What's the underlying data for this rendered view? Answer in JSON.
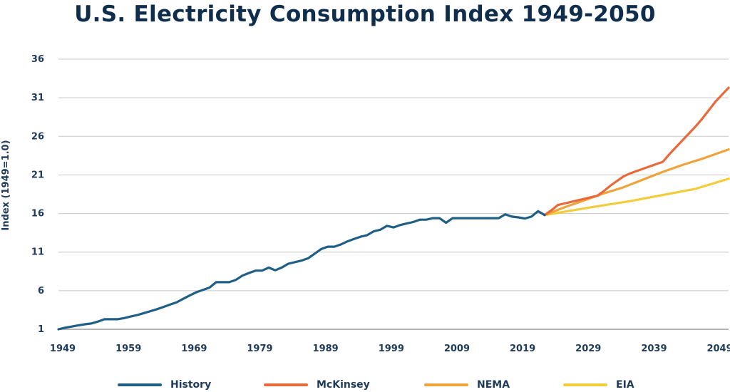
{
  "chart_data": {
    "type": "line",
    "title": "U.S. Electricity Consumption Index 1949-2050",
    "xlabel": "",
    "ylabel": "Index (1949=1.0)",
    "xlim": [
      1949,
      2051
    ],
    "ylim": [
      1,
      36
    ],
    "y_ticks": [
      1,
      6,
      11,
      16,
      21,
      26,
      31,
      36
    ],
    "x_ticks": [
      1949,
      1959,
      1969,
      1979,
      1989,
      1999,
      2009,
      2019,
      2029,
      2039,
      2049
    ],
    "grid": true,
    "legend_position": "bottom",
    "series": [
      {
        "name": "History",
        "color": "#1f5f86",
        "points": [
          [
            1949,
            1.0
          ],
          [
            1950,
            1.2
          ],
          [
            1951,
            1.35
          ],
          [
            1952,
            1.5
          ],
          [
            1953,
            1.65
          ],
          [
            1954,
            1.75
          ],
          [
            1955,
            2.0
          ],
          [
            1956,
            2.3
          ],
          [
            1957,
            2.3
          ],
          [
            1958,
            2.3
          ],
          [
            1959,
            2.45
          ],
          [
            1960,
            2.65
          ],
          [
            1961,
            2.85
          ],
          [
            1962,
            3.1
          ],
          [
            1963,
            3.35
          ],
          [
            1964,
            3.6
          ],
          [
            1965,
            3.9
          ],
          [
            1966,
            4.2
          ],
          [
            1967,
            4.5
          ],
          [
            1968,
            4.95
          ],
          [
            1969,
            5.4
          ],
          [
            1970,
            5.8
          ],
          [
            1971,
            6.1
          ],
          [
            1972,
            6.4
          ],
          [
            1973,
            7.1
          ],
          [
            1974,
            7.1
          ],
          [
            1975,
            7.1
          ],
          [
            1976,
            7.4
          ],
          [
            1977,
            7.95
          ],
          [
            1978,
            8.3
          ],
          [
            1979,
            8.6
          ],
          [
            1980,
            8.6
          ],
          [
            1981,
            9.0
          ],
          [
            1982,
            8.65
          ],
          [
            1983,
            9.0
          ],
          [
            1984,
            9.5
          ],
          [
            1985,
            9.7
          ],
          [
            1986,
            9.9
          ],
          [
            1987,
            10.2
          ],
          [
            1988,
            10.8
          ],
          [
            1989,
            11.4
          ],
          [
            1990,
            11.7
          ],
          [
            1991,
            11.7
          ],
          [
            1992,
            12.0
          ],
          [
            1993,
            12.4
          ],
          [
            1994,
            12.7
          ],
          [
            1995,
            13.0
          ],
          [
            1996,
            13.2
          ],
          [
            1997,
            13.7
          ],
          [
            1998,
            13.9
          ],
          [
            1999,
            14.4
          ],
          [
            2000,
            14.2
          ],
          [
            2001,
            14.5
          ],
          [
            2002,
            14.7
          ],
          [
            2003,
            14.9
          ],
          [
            2004,
            15.2
          ],
          [
            2005,
            15.2
          ],
          [
            2006,
            15.4
          ],
          [
            2007,
            15.4
          ],
          [
            2008,
            14.8
          ],
          [
            2009,
            15.4
          ],
          [
            2010,
            15.4
          ],
          [
            2011,
            15.4
          ],
          [
            2012,
            15.4
          ],
          [
            2013,
            15.4
          ],
          [
            2014,
            15.4
          ],
          [
            2015,
            15.4
          ],
          [
            2016,
            15.4
          ],
          [
            2017,
            15.9
          ],
          [
            2018,
            15.6
          ],
          [
            2019,
            15.5
          ],
          [
            2020,
            15.35
          ],
          [
            2021,
            15.6
          ],
          [
            2022,
            16.3
          ],
          [
            2023,
            15.8
          ]
        ]
      },
      {
        "name": "McKinsey",
        "color": "#e8693a",
        "points": [
          [
            2023,
            15.8
          ],
          [
            2024,
            16.4
          ],
          [
            2025,
            17.1
          ],
          [
            2026,
            17.3
          ],
          [
            2027,
            17.5
          ],
          [
            2028,
            17.7
          ],
          [
            2029,
            17.9
          ],
          [
            2030,
            18.1
          ],
          [
            2031,
            18.3
          ],
          [
            2032,
            18.9
          ],
          [
            2033,
            19.6
          ],
          [
            2034,
            20.2
          ],
          [
            2035,
            20.8
          ],
          [
            2036,
            21.2
          ],
          [
            2037,
            21.5
          ],
          [
            2038,
            21.8
          ],
          [
            2039,
            22.1
          ],
          [
            2040,
            22.4
          ],
          [
            2041,
            22.7
          ],
          [
            2042,
            23.7
          ],
          [
            2043,
            24.6
          ],
          [
            2044,
            25.5
          ],
          [
            2045,
            26.4
          ],
          [
            2046,
            27.3
          ],
          [
            2047,
            28.3
          ],
          [
            2048,
            29.4
          ],
          [
            2049,
            30.5
          ],
          [
            2050,
            31.4
          ],
          [
            2051,
            32.3
          ]
        ]
      },
      {
        "name": "NEMA",
        "color": "#eea33b",
        "points": [
          [
            2023,
            15.8
          ],
          [
            2026,
            16.8
          ],
          [
            2029,
            17.7
          ],
          [
            2032,
            18.6
          ],
          [
            2035,
            19.4
          ],
          [
            2038,
            20.4
          ],
          [
            2041,
            21.4
          ],
          [
            2044,
            22.3
          ],
          [
            2047,
            23.1
          ],
          [
            2051,
            24.3
          ]
        ]
      },
      {
        "name": "EIA",
        "color": "#f2cc3b",
        "points": [
          [
            2023,
            15.8
          ],
          [
            2030,
            16.8
          ],
          [
            2036,
            17.6
          ],
          [
            2041,
            18.4
          ],
          [
            2046,
            19.2
          ],
          [
            2051,
            20.5
          ]
        ]
      }
    ]
  }
}
